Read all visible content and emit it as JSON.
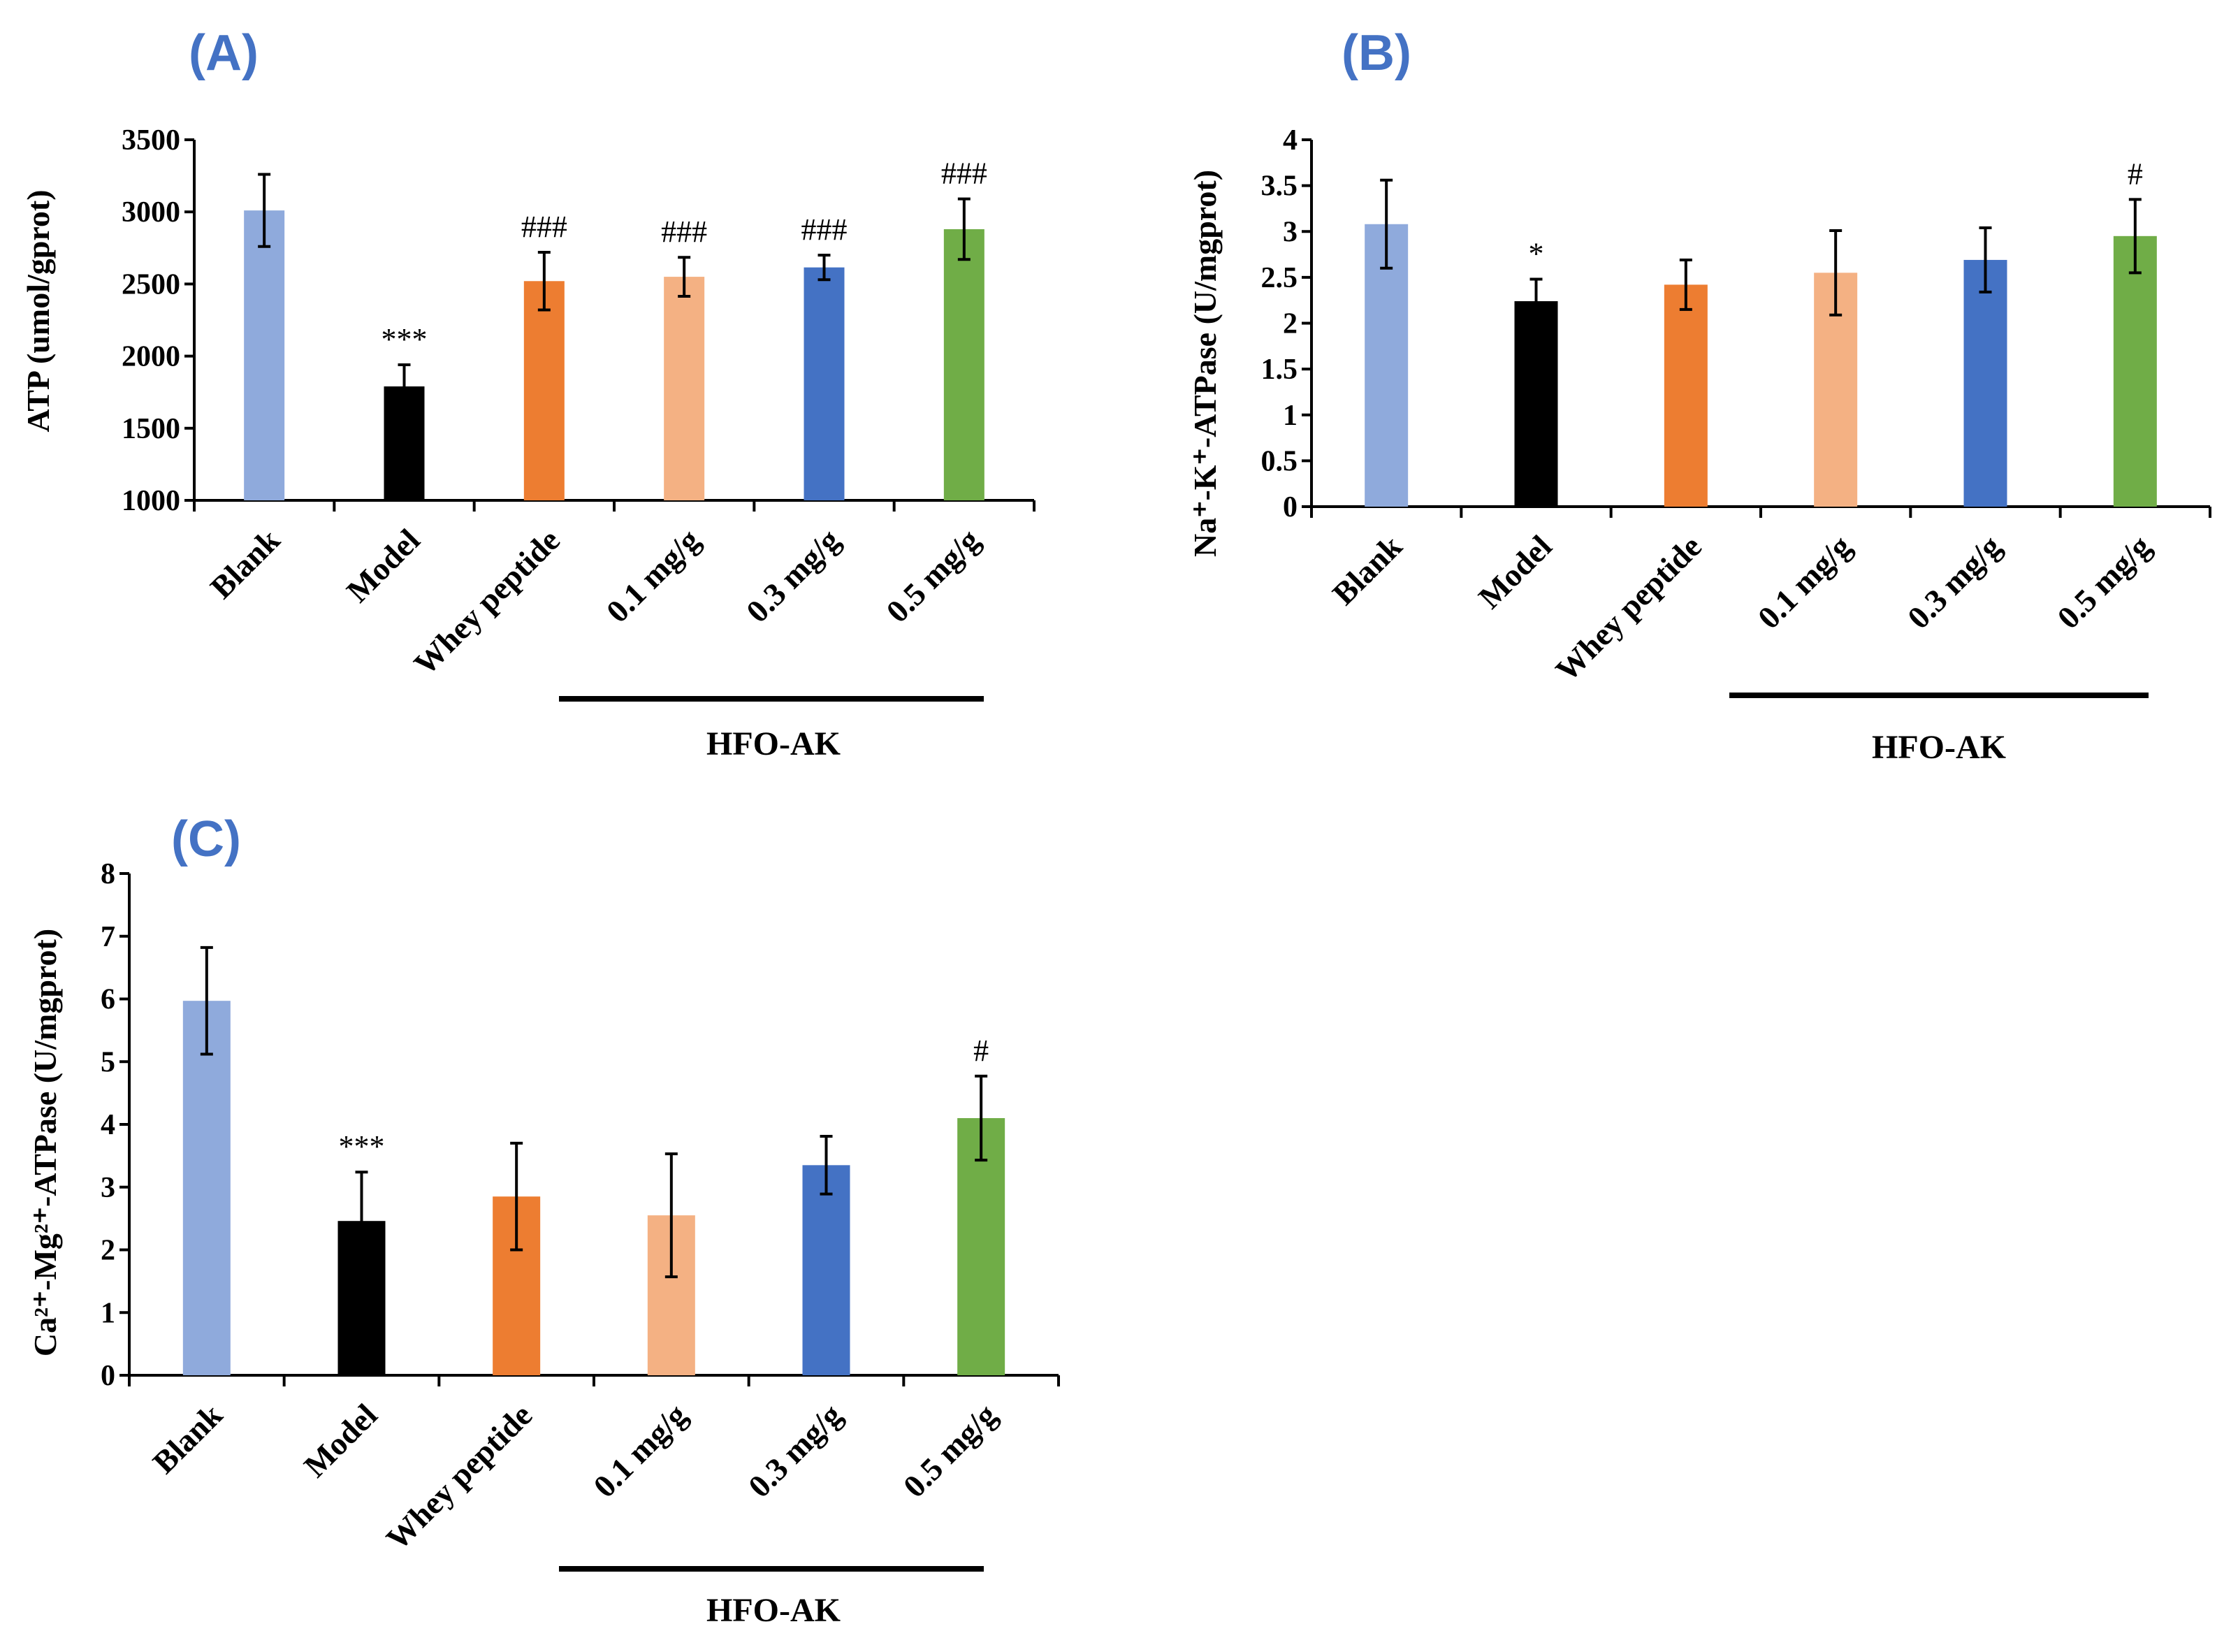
{
  "chart_data": [
    {
      "type": "bar",
      "panel_label": "(A)",
      "ylabel": "ATP (umol/gprot)",
      "ylim": [
        1000,
        3500
      ],
      "yticks": [
        "1000",
        "1500",
        "2000",
        "2500",
        "3000",
        "3500"
      ],
      "categories": [
        "Blank",
        "Model",
        "Whey peptide",
        "0.1 mg/g",
        "0.3 mg/g",
        "0.5 mg/g"
      ],
      "values": [
        3010,
        1790,
        2520,
        2550,
        2615,
        2880
      ],
      "errors": [
        250,
        150,
        200,
        135,
        85,
        210
      ],
      "significance": [
        "",
        "***",
        "###",
        "###",
        "###",
        "###"
      ],
      "group_label": "HFO-AK",
      "colors": [
        "#8faadc",
        "#000000",
        "#ed7d31",
        "#f4b183",
        "#4472c4",
        "#70ad47"
      ]
    },
    {
      "type": "bar",
      "panel_label": "(B)",
      "ylabel": "Na⁺-K⁺-ATPase (U/mgprot)",
      "ylim": [
        0,
        4
      ],
      "yticks": [
        "0",
        "0.5",
        "1",
        "1.5",
        "2",
        "2.5",
        "3",
        "3.5",
        "4"
      ],
      "categories": [
        "Blank",
        "Model",
        "Whey peptide",
        "0.1 mg/g",
        "0.3 mg/g",
        "0.5 mg/g"
      ],
      "values": [
        3.08,
        2.24,
        2.42,
        2.55,
        2.69,
        2.95
      ],
      "errors": [
        0.48,
        0.24,
        0.27,
        0.46,
        0.35,
        0.4
      ],
      "significance": [
        "",
        "*",
        "",
        "",
        "",
        "#"
      ],
      "group_label": "HFO-AK",
      "colors": [
        "#8faadc",
        "#000000",
        "#ed7d31",
        "#f4b183",
        "#4472c4",
        "#70ad47"
      ]
    },
    {
      "type": "bar",
      "panel_label": "(C)",
      "ylabel": "Ca²⁺-Mg²⁺-ATPase (U/mgprot)",
      "ylim": [
        0,
        8
      ],
      "yticks": [
        "0",
        "1",
        "2",
        "3",
        "4",
        "5",
        "6",
        "7",
        "8"
      ],
      "categories": [
        "Blank",
        "Model",
        "Whey peptide",
        "0.1 mg/g",
        "0.3 mg/g",
        "0.5 mg/g"
      ],
      "values": [
        5.97,
        2.46,
        2.85,
        2.55,
        3.35,
        4.1
      ],
      "errors": [
        0.85,
        0.78,
        0.85,
        0.98,
        0.46,
        0.67
      ],
      "significance": [
        "",
        "***",
        "",
        "",
        "",
        "#"
      ],
      "group_label": "HFO-AK",
      "colors": [
        "#8faadc",
        "#000000",
        "#ed7d31",
        "#f4b183",
        "#4472c4",
        "#70ad47"
      ]
    }
  ],
  "label_color": "#4472c4"
}
